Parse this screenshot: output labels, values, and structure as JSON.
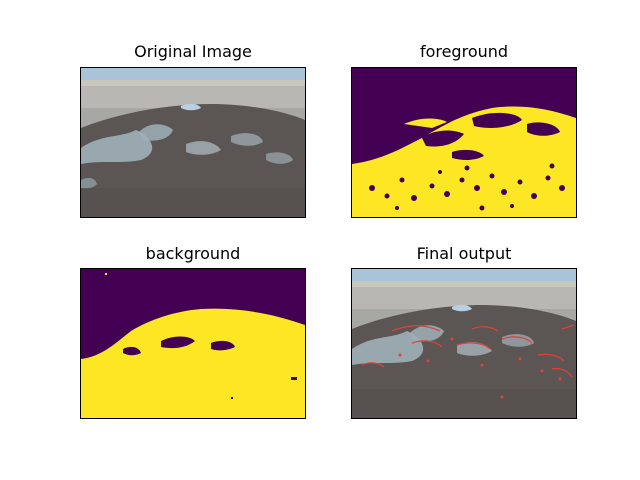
{
  "figure": {
    "panels": [
      {
        "title": "Original Image"
      },
      {
        "title": "foreground"
      },
      {
        "title": "background"
      },
      {
        "title": "Final output"
      }
    ]
  },
  "colors": {
    "viridis_dark": "#440154",
    "viridis_yellow": "#fde725",
    "sky": "#a9c4d8",
    "sand_light": "#b9b7b4",
    "sand_mid": "#a7a7a4",
    "water_grey": "#9fb0b8",
    "ground_dark": "#5b5653",
    "overlay_red": "#e0413a"
  }
}
